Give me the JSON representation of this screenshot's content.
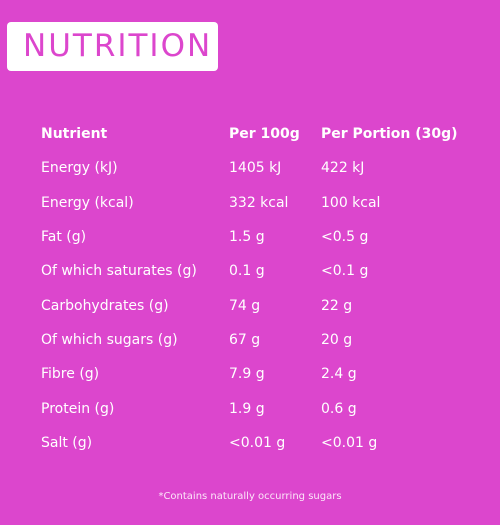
{
  "title": "NUTRITION",
  "table": {
    "headers": [
      "Nutrient",
      "Per 100g",
      "Per Portion (30g)"
    ],
    "rows": [
      [
        "Energy (kJ)",
        "1405 kJ",
        "422 kJ"
      ],
      [
        "Energy (kcal)",
        "332 kcal",
        "100 kcal"
      ],
      [
        "Fat (g)",
        "1.5 g",
        "<0.5 g"
      ],
      [
        "Of which saturates (g)",
        "0.1 g",
        "<0.1 g"
      ],
      [
        "Carbohydrates (g)",
        "74 g",
        "22 g"
      ],
      [
        "Of which sugars (g)",
        "67 g",
        "20 g"
      ],
      [
        "Fibre (g)",
        "7.9 g",
        "2.4 g"
      ],
      [
        "Protein (g)",
        "1.9 g",
        "0.6 g"
      ],
      [
        "Salt (g)",
        "<0.01 g",
        "<0.01 g"
      ]
    ]
  },
  "footnote": "*Contains naturally occurring sugars",
  "colors": {
    "background": "#dc46cd",
    "title_box": "#ffffff",
    "text": "#ffffff"
  }
}
